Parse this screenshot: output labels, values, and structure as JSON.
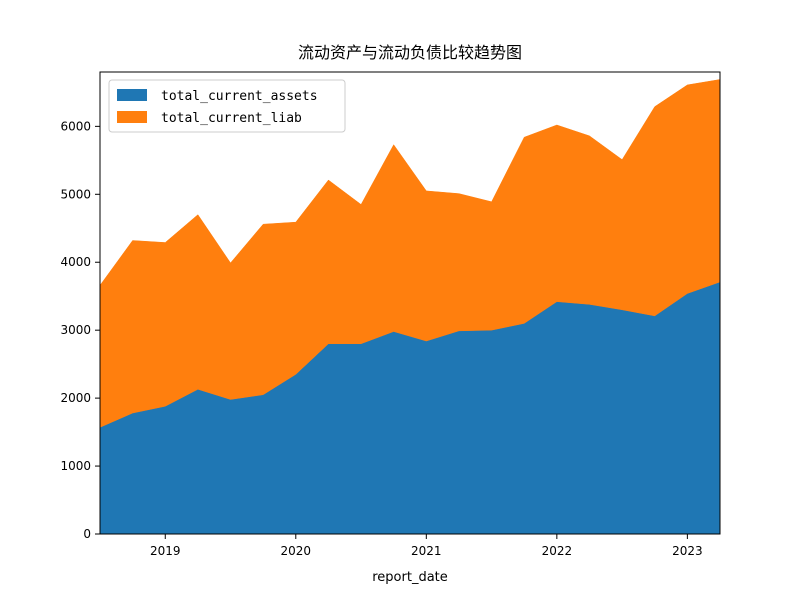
{
  "chart_data": {
    "type": "area",
    "stacked": true,
    "title": "流动资产与流动负债比较趋势图",
    "xlabel": "report_date",
    "ylabel": "",
    "x_ticks": [
      {
        "label": "2019",
        "index": 2
      },
      {
        "label": "2020",
        "index": 6
      },
      {
        "label": "2021",
        "index": 10
      },
      {
        "label": "2022",
        "index": 14
      },
      {
        "label": "2023",
        "index": 18
      }
    ],
    "y_ticks": [
      0,
      1000,
      2000,
      3000,
      4000,
      5000,
      6000
    ],
    "xlim": [
      0,
      19
    ],
    "ylim": [
      0,
      6800
    ],
    "legend_position": "upper-left",
    "series": [
      {
        "name": "total_current_assets",
        "color": "#1f77b4",
        "values": [
          1570,
          1780,
          1880,
          2130,
          1980,
          2050,
          2350,
          2800,
          2800,
          2980,
          2840,
          2990,
          3000,
          3100,
          3420,
          3380,
          3300,
          3210,
          3540,
          3710
        ]
      },
      {
        "name": "total_current_liab",
        "color": "#ff7f0e",
        "values": [
          2090,
          2540,
          2410,
          2570,
          2010,
          2510,
          2240,
          2410,
          2050,
          2750,
          2210,
          2020,
          1890,
          2740,
          2600,
          2480,
          2210,
          3080,
          3070,
          2980
        ]
      }
    ],
    "grid": false
  }
}
